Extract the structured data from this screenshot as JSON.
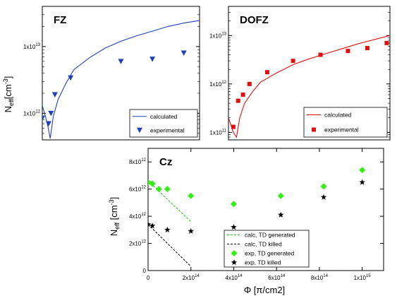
{
  "chart_data": [
    {
      "panel": "FZ",
      "type": "line",
      "title": "FZ",
      "ylabel_main": "N",
      "ylabel_sub": "eff",
      "ylabel_unit": "[cm",
      "ylabel_unit_sup": "-3",
      "ylabel_unit_close": "]",
      "y_scale": "log",
      "ylim": [
        400000000000.0,
        40000000000000.0
      ],
      "xlim": [
        0,
        1000000000000000.0
      ],
      "x_ticks_shown": false,
      "y_ticks": [
        {
          "value": 1000000000000.0,
          "label": "1x10",
          "sup": "12"
        },
        {
          "value": 10000000000000.0,
          "label": "1x10",
          "sup": "13"
        }
      ],
      "series": [
        {
          "name": "calculated",
          "style": "line",
          "color": "#1f3fb8",
          "x": [
            0,
            15000000000000.0,
            35000000000000.0,
            50000000000000.0,
            70000000000000.0,
            100000000000000.0,
            150000000000000.0,
            200000000000000.0,
            300000000000000.0,
            400000000000000.0,
            500000000000000.0,
            600000000000000.0,
            700000000000000.0,
            800000000000000.0,
            900000000000000.0,
            1000000000000000.0
          ],
          "y": [
            1300000000000.0,
            1000000000000.0,
            650000000000.0,
            420000000000.0,
            900000000000.0,
            1600000000000.0,
            2800000000000.0,
            4500000000000.0,
            6800000000000.0,
            9500000000000.0,
            12000000000000.0,
            14500000000000.0,
            17000000000000.0,
            20000000000000.0,
            22500000000000.0,
            24500000000000.0
          ]
        },
        {
          "name": "experimental",
          "style": "triangle-down",
          "color": "#1f3fb8",
          "x": [
            0,
            40000000000000.0,
            55000000000000.0,
            80000000000000.0,
            180000000000000.0,
            500000000000000.0,
            700000000000000.0,
            900000000000000.0
          ],
          "y": [
            850000000000.0,
            700000000000.0,
            1000000000000.0,
            1900000000000.0,
            3400000000000.0,
            6000000000000.0,
            6500000000000.0,
            8000000000000.0
          ]
        }
      ],
      "legend_position": "bottom-right"
    },
    {
      "panel": "DOFZ",
      "type": "line",
      "title": "DOFZ",
      "y_scale": "log",
      "ylim": [
        70000000000.0,
        40000000000000.0
      ],
      "xlim": [
        0,
        1000000000000000.0
      ],
      "x_ticks_shown": false,
      "y_ticks": [
        {
          "value": 100000000000.0,
          "label": "1x10",
          "sup": "11"
        },
        {
          "value": 1000000000000.0,
          "label": "1x10",
          "sup": "12"
        },
        {
          "value": 10000000000000.0,
          "label": "1x10",
          "sup": "13"
        }
      ],
      "series": [
        {
          "name": "calculated",
          "style": "line",
          "color": "#e01010",
          "x": [
            0,
            30000000000000.0,
            50000000000000.0,
            70000000000000.0,
            100000000000000.0,
            150000000000000.0,
            200000000000000.0,
            300000000000000.0,
            400000000000000.0,
            500000000000000.0,
            600000000000000.0,
            700000000000000.0,
            800000000000000.0,
            900000000000000.0,
            1000000000000000.0
          ],
          "y": [
            200000000000.0,
            100000000000.0,
            80000000000.0,
            200000000000.0,
            400000000000.0,
            700000000000.0,
            1100000000000.0,
            1700000000000.0,
            2500000000000.0,
            3300000000000.0,
            4200000000000.0,
            5300000000000.0,
            6700000000000.0,
            8200000000000.0,
            10000000000000.0
          ]
        },
        {
          "name": "experimental",
          "style": "square",
          "color": "#e01010",
          "x": [
            30000000000000.0,
            60000000000000.0,
            90000000000000.0,
            130000000000000.0,
            240000000000000.0,
            400000000000000.0,
            570000000000000.0,
            740000000000000.0,
            860000000000000.0,
            980000000000000.0
          ],
          "y": [
            130000000000.0,
            450000000000.0,
            600000000000.0,
            1000000000000.0,
            1750000000000.0,
            3000000000000.0,
            4000000000000.0,
            4800000000000.0,
            5500000000000.0,
            7000000000000.0
          ]
        }
      ],
      "legend_position": "bottom-right"
    },
    {
      "panel": "Cz",
      "type": "scatter",
      "title": "Cz",
      "xlabel": "Φ [π/cm2]",
      "ylabel_main": "N",
      "ylabel_sub": "eff",
      "ylabel_unit": " [cm",
      "ylabel_unit_sup": "-3",
      "ylabel_unit_close": "]",
      "xlim": [
        0,
        1100000000000000.0
      ],
      "ylim": [
        0,
        9000000000000.0
      ],
      "x_ticks": [
        {
          "value": 0,
          "label": "0",
          "sup": ""
        },
        {
          "value": 200000000000000.0,
          "label": "2x10",
          "sup": "14"
        },
        {
          "value": 400000000000000.0,
          "label": "4x10",
          "sup": "14"
        },
        {
          "value": 600000000000000.0,
          "label": "6x10",
          "sup": "14"
        },
        {
          "value": 800000000000000.0,
          "label": "8x10",
          "sup": "14"
        },
        {
          "value": 1000000000000000.0,
          "label": "1x10",
          "sup": "15"
        }
      ],
      "y_ticks": [
        {
          "value": 0,
          "label": "0",
          "sup": ""
        },
        {
          "value": 2000000000000.0,
          "label": "2x10",
          "sup": "12"
        },
        {
          "value": 4000000000000.0,
          "label": "4x10",
          "sup": "12"
        },
        {
          "value": 6000000000000.0,
          "label": "6x10",
          "sup": "12"
        },
        {
          "value": 8000000000000.0,
          "label": "8x10",
          "sup": "12"
        }
      ],
      "series": [
        {
          "name": "calc, TD generated",
          "style": "dashed-line",
          "color": "#22cc22",
          "x": [
            0,
            200000000000000.0
          ],
          "y": [
            6600000000000.0,
            3600000000000.0
          ]
        },
        {
          "name": "calc, TD killed",
          "style": "dashed-line",
          "color": "#000000",
          "x": [
            0,
            200000000000000.0
          ],
          "y": [
            3400000000000.0,
            300000000000.0
          ]
        },
        {
          "name": "exp, TD generated",
          "style": "diamond",
          "color": "#33ee11",
          "x": [
            0,
            20000000000000.0,
            50000000000000.0,
            90000000000000.0,
            200000000000000.0,
            400000000000000.0,
            620000000000000.0,
            820000000000000.0,
            1000000000000000.0
          ],
          "y": [
            6500000000000.0,
            6400000000000.0,
            6000000000000.0,
            6000000000000.0,
            5500000000000.0,
            4900000000000.0,
            5500000000000.0,
            6200000000000.0,
            7400000000000.0
          ]
        },
        {
          "name": "exp, TD killed",
          "style": "star",
          "color": "#000000",
          "x": [
            0,
            20000000000000.0,
            90000000000000.0,
            200000000000000.0,
            400000000000000.0,
            620000000000000.0,
            820000000000000.0,
            1000000000000000.0
          ],
          "y": [
            3400000000000.0,
            3300000000000.0,
            3000000000000.0,
            2900000000000.0,
            3200000000000.0,
            4100000000000.0,
            5400000000000.0,
            6500000000000.0
          ]
        }
      ],
      "legend_position": "bottom-right"
    }
  ]
}
